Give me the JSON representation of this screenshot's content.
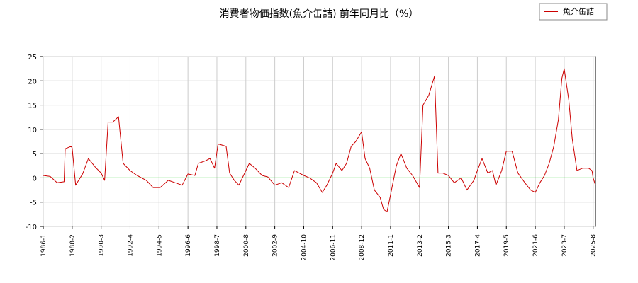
{
  "chart_data": {
    "type": "line",
    "title": "消費者物価指数(魚介缶詰) 前年同月比（%）",
    "xlabel": "",
    "ylabel": "",
    "ylim": [
      -10,
      25
    ],
    "yticks": [
      -10,
      -5,
      0,
      5,
      10,
      15,
      20,
      25
    ],
    "xlim": [
      "1986-1",
      "2025-10"
    ],
    "xticks": [
      "1986-1",
      "1988-2",
      "1990-3",
      "1992-4",
      "1994-5",
      "1996-6",
      "1998-7",
      "2000-8",
      "2002-9",
      "2004-10",
      "2006-11",
      "2008-12",
      "2011-1",
      "2013-2",
      "2015-3",
      "2017-4",
      "2019-5",
      "2021-6",
      "2023-7",
      "2025-8"
    ],
    "grid": true,
    "legend": {
      "placement": "top-right"
    },
    "zero_line_color": "#00cc00",
    "series": [
      {
        "name": "魚介缶詰",
        "color": "#cc0000",
        "points": [
          [
            "1986-1",
            0.5
          ],
          [
            "1986-7",
            0.3
          ],
          [
            "1987-1",
            -1.0
          ],
          [
            "1987-7",
            -0.8
          ],
          [
            "1987-8",
            6.0
          ],
          [
            "1988-1",
            6.5
          ],
          [
            "1988-2",
            6.2
          ],
          [
            "1988-5",
            -1.5
          ],
          [
            "1988-11",
            0.8
          ],
          [
            "1989-4",
            4.0
          ],
          [
            "1989-10",
            2.2
          ],
          [
            "1990-3",
            1.0
          ],
          [
            "1990-6",
            -0.5
          ],
          [
            "1990-9",
            11.5
          ],
          [
            "1991-1",
            11.5
          ],
          [
            "1991-6",
            12.6
          ],
          [
            "1991-10",
            3.0
          ],
          [
            "1992-4",
            1.5
          ],
          [
            "1992-10",
            0.5
          ],
          [
            "1993-6",
            -0.5
          ],
          [
            "1993-12",
            -2.0
          ],
          [
            "1994-6",
            -2.0
          ],
          [
            "1995-1",
            -0.5
          ],
          [
            "1995-7",
            -1.0
          ],
          [
            "1996-1",
            -1.5
          ],
          [
            "1996-6",
            0.8
          ],
          [
            "1996-12",
            0.5
          ],
          [
            "1997-3",
            3.0
          ],
          [
            "1997-9",
            3.5
          ],
          [
            "1998-1",
            4.0
          ],
          [
            "1998-5",
            2.0
          ],
          [
            "1998-8",
            7.0
          ],
          [
            "1999-3",
            6.5
          ],
          [
            "1999-6",
            1.0
          ],
          [
            "1999-10",
            -0.5
          ],
          [
            "2000-2",
            -1.5
          ],
          [
            "2000-8",
            1.5
          ],
          [
            "2000-11",
            3.0
          ],
          [
            "2001-4",
            2.0
          ],
          [
            "2001-10",
            0.5
          ],
          [
            "2002-3",
            0.2
          ],
          [
            "2002-9",
            -1.5
          ],
          [
            "2003-3",
            -1.0
          ],
          [
            "2003-9",
            -2.0
          ],
          [
            "2004-2",
            1.5
          ],
          [
            "2004-10",
            0.5
          ],
          [
            "2005-3",
            0.0
          ],
          [
            "2005-9",
            -1.0
          ],
          [
            "2006-2",
            -3.0
          ],
          [
            "2006-6",
            -1.5
          ],
          [
            "2006-11",
            1.0
          ],
          [
            "2007-2",
            3.0
          ],
          [
            "2007-7",
            1.5
          ],
          [
            "2007-11",
            3.0
          ],
          [
            "2008-3",
            6.5
          ],
          [
            "2008-7",
            7.5
          ],
          [
            "2008-12",
            9.5
          ],
          [
            "2009-3",
            4.0
          ],
          [
            "2009-7",
            2.0
          ],
          [
            "2009-11",
            -2.5
          ],
          [
            "2010-4",
            -4.0
          ],
          [
            "2010-7",
            -6.5
          ],
          [
            "2010-10",
            -7.0
          ],
          [
            "2011-1",
            -3.5
          ],
          [
            "2011-6",
            2.5
          ],
          [
            "2011-10",
            5.0
          ],
          [
            "2012-3",
            2.0
          ],
          [
            "2012-8",
            0.5
          ],
          [
            "2013-2",
            -2.0
          ],
          [
            "2013-5",
            15.0
          ],
          [
            "2013-10",
            17.0
          ],
          [
            "2014-3",
            21.0
          ],
          [
            "2014-6",
            1.0
          ],
          [
            "2014-10",
            1.0
          ],
          [
            "2015-3",
            0.5
          ],
          [
            "2015-8",
            -1.0
          ],
          [
            "2016-2",
            0.0
          ],
          [
            "2016-7",
            -2.5
          ],
          [
            "2017-1",
            -0.5
          ],
          [
            "2017-4",
            1.5
          ],
          [
            "2017-8",
            4.0
          ],
          [
            "2018-1",
            1.0
          ],
          [
            "2018-5",
            1.5
          ],
          [
            "2018-8",
            -1.5
          ],
          [
            "2019-1",
            1.5
          ],
          [
            "2019-5",
            5.5
          ],
          [
            "2019-10",
            5.5
          ],
          [
            "2020-3",
            1.0
          ],
          [
            "2020-9",
            -1.0
          ],
          [
            "2021-2",
            -2.5
          ],
          [
            "2021-6",
            -3.0
          ],
          [
            "2021-10",
            -1.0
          ],
          [
            "2022-2",
            0.5
          ],
          [
            "2022-6",
            3.0
          ],
          [
            "2022-10",
            6.5
          ],
          [
            "2023-2",
            12.0
          ],
          [
            "2023-5",
            20.5
          ],
          [
            "2023-7",
            22.5
          ],
          [
            "2023-11",
            16.0
          ],
          [
            "2024-2",
            8.0
          ],
          [
            "2024-6",
            1.5
          ],
          [
            "2024-11",
            2.0
          ],
          [
            "2025-4",
            2.0
          ],
          [
            "2025-7",
            1.5
          ],
          [
            "2025-8",
            0.0
          ],
          [
            "2025-10",
            -1.5
          ]
        ]
      }
    ]
  }
}
